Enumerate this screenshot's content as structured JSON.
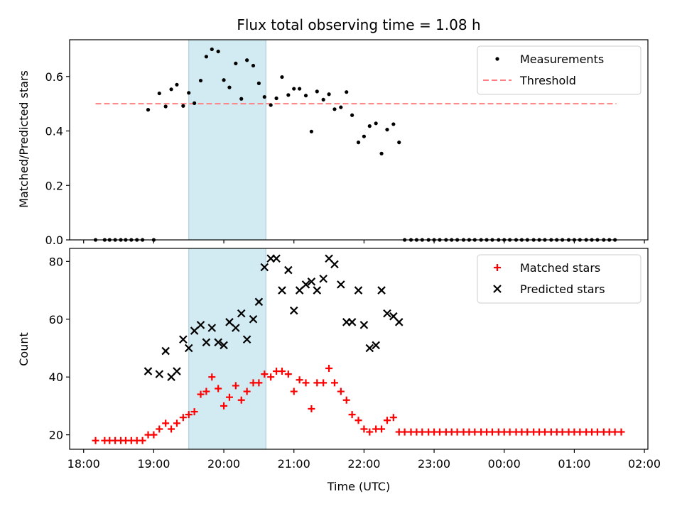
{
  "chart_data": [
    {
      "type": "scatter",
      "title": "Flux total observing time = 1.08 h",
      "xlabel": "",
      "ylabel": "Matched/Predicted stars",
      "ylim": [
        0,
        0.735
      ],
      "xlim": [
        -0.2,
        8.05
      ],
      "x_unit": "hours since 18:00 UTC",
      "y_ticks": [
        "0.0",
        "0.2",
        "0.4",
        "0.6"
      ],
      "y_tick_values": [
        0,
        0.2,
        0.4,
        0.6
      ],
      "highlight_span": [
        1.5,
        2.6
      ],
      "highlight_color": "#add8e6",
      "legend": {
        "placement": "top-right",
        "entries": [
          "Measurements",
          "Threshold"
        ]
      },
      "threshold": {
        "name": "Threshold",
        "value": 0.5,
        "x_range": [
          0.17,
          7.6
        ],
        "color": "#ff8080",
        "style": "dashed"
      },
      "series": [
        {
          "name": "Measurements",
          "color": "#000000",
          "marker": "dot",
          "points": [
            [
              0.17,
              0.0
            ],
            [
              0.3,
              0.0
            ],
            [
              0.37,
              0.0
            ],
            [
              0.45,
              0.0
            ],
            [
              0.53,
              0.0
            ],
            [
              0.6,
              0.0
            ],
            [
              0.68,
              0.0
            ],
            [
              0.76,
              0.0
            ],
            [
              0.84,
              0.0
            ],
            [
              0.92,
              0.478
            ],
            [
              1.0,
              0.0
            ],
            [
              1.08,
              0.538
            ],
            [
              1.17,
              0.49
            ],
            [
              1.25,
              0.553
            ],
            [
              1.33,
              0.57
            ],
            [
              1.42,
              0.492
            ],
            [
              1.5,
              0.54
            ],
            [
              1.58,
              0.502
            ],
            [
              1.67,
              0.585
            ],
            [
              1.75,
              0.673
            ],
            [
              1.83,
              0.7
            ],
            [
              1.92,
              0.692
            ],
            [
              2.0,
              0.587
            ],
            [
              2.08,
              0.56
            ],
            [
              2.17,
              0.648
            ],
            [
              2.25,
              0.518
            ],
            [
              2.33,
              0.66
            ],
            [
              2.42,
              0.64
            ],
            [
              2.5,
              0.575
            ],
            [
              2.58,
              0.525
            ],
            [
              2.67,
              0.495
            ],
            [
              2.75,
              0.52
            ],
            [
              2.83,
              0.598
            ],
            [
              2.92,
              0.532
            ],
            [
              3.0,
              0.555
            ],
            [
              3.08,
              0.555
            ],
            [
              3.17,
              0.53
            ],
            [
              3.25,
              0.398
            ],
            [
              3.33,
              0.545
            ],
            [
              3.42,
              0.515
            ],
            [
              3.5,
              0.535
            ],
            [
              3.58,
              0.48
            ],
            [
              3.67,
              0.487
            ],
            [
              3.75,
              0.543
            ],
            [
              3.83,
              0.458
            ],
            [
              3.92,
              0.358
            ],
            [
              4.0,
              0.38
            ],
            [
              4.08,
              0.418
            ],
            [
              4.17,
              0.428
            ],
            [
              4.25,
              0.317
            ],
            [
              4.33,
              0.405
            ],
            [
              4.42,
              0.425
            ],
            [
              4.5,
              0.358
            ],
            [
              4.58,
              0.0
            ],
            [
              4.67,
              0.0
            ],
            [
              4.75,
              0.0
            ],
            [
              4.83,
              0.0
            ],
            [
              4.92,
              0.0
            ],
            [
              5.0,
              0.0
            ],
            [
              5.08,
              0.0
            ],
            [
              5.17,
              0.0
            ],
            [
              5.25,
              0.0
            ],
            [
              5.33,
              0.0
            ],
            [
              5.42,
              0.0
            ],
            [
              5.5,
              0.0
            ],
            [
              5.58,
              0.0
            ],
            [
              5.67,
              0.0
            ],
            [
              5.75,
              0.0
            ],
            [
              5.83,
              0.0
            ],
            [
              5.92,
              0.0
            ],
            [
              6.0,
              0.0
            ],
            [
              6.08,
              0.0
            ],
            [
              6.17,
              0.0
            ],
            [
              6.25,
              0.0
            ],
            [
              6.33,
              0.0
            ],
            [
              6.42,
              0.0
            ],
            [
              6.5,
              0.0
            ],
            [
              6.58,
              0.0
            ],
            [
              6.67,
              0.0
            ],
            [
              6.75,
              0.0
            ],
            [
              6.83,
              0.0
            ],
            [
              6.92,
              0.0
            ],
            [
              7.0,
              0.0
            ],
            [
              7.08,
              0.0
            ],
            [
              7.17,
              0.0
            ],
            [
              7.25,
              0.0
            ],
            [
              7.33,
              0.0
            ],
            [
              7.42,
              0.0
            ],
            [
              7.5,
              0.0
            ],
            [
              7.58,
              0.0
            ]
          ]
        }
      ]
    },
    {
      "type": "scatter",
      "title": "",
      "xlabel": "Time (UTC)",
      "ylabel": "Count",
      "ylim": [
        15,
        84.5
      ],
      "xlim": [
        -0.2,
        8.05
      ],
      "x_unit": "hours since 18:00 UTC",
      "y_ticks": [
        "20",
        "40",
        "60",
        "80"
      ],
      "y_tick_values": [
        20,
        40,
        60,
        80
      ],
      "x_ticks": [
        "18:00",
        "19:00",
        "20:00",
        "21:00",
        "22:00",
        "23:00",
        "00:00",
        "01:00",
        "02:00"
      ],
      "x_tick_values": [
        0,
        1,
        2,
        3,
        4,
        5,
        6,
        7,
        8
      ],
      "highlight_span": [
        1.5,
        2.6
      ],
      "highlight_color": "#add8e6",
      "legend": {
        "placement": "top-right",
        "entries": [
          "Matched stars",
          "Predicted stars"
        ]
      },
      "series": [
        {
          "name": "Matched stars",
          "color": "#ff0000",
          "marker": "plus",
          "points": [
            [
              0.17,
              18
            ],
            [
              0.3,
              18
            ],
            [
              0.37,
              18
            ],
            [
              0.45,
              18
            ],
            [
              0.53,
              18
            ],
            [
              0.6,
              18
            ],
            [
              0.68,
              18
            ],
            [
              0.76,
              18
            ],
            [
              0.84,
              18
            ],
            [
              0.92,
              20
            ],
            [
              1.0,
              20
            ],
            [
              1.08,
              22
            ],
            [
              1.17,
              24
            ],
            [
              1.25,
              22
            ],
            [
              1.33,
              24
            ],
            [
              1.42,
              26
            ],
            [
              1.5,
              27
            ],
            [
              1.58,
              28
            ],
            [
              1.67,
              34
            ],
            [
              1.75,
              35
            ],
            [
              1.83,
              40
            ],
            [
              1.92,
              36
            ],
            [
              2.0,
              30
            ],
            [
              2.08,
              33
            ],
            [
              2.17,
              37
            ],
            [
              2.25,
              32
            ],
            [
              2.33,
              35
            ],
            [
              2.42,
              38
            ],
            [
              2.5,
              38
            ],
            [
              2.58,
              41
            ],
            [
              2.67,
              40
            ],
            [
              2.75,
              42
            ],
            [
              2.83,
              42
            ],
            [
              2.92,
              41
            ],
            [
              3.0,
              35
            ],
            [
              3.08,
              39
            ],
            [
              3.17,
              38
            ],
            [
              3.25,
              29
            ],
            [
              3.33,
              38
            ],
            [
              3.42,
              38
            ],
            [
              3.5,
              43
            ],
            [
              3.58,
              38
            ],
            [
              3.67,
              35
            ],
            [
              3.75,
              32
            ],
            [
              3.83,
              27
            ],
            [
              3.92,
              25
            ],
            [
              4.0,
              22
            ],
            [
              4.08,
              21
            ],
            [
              4.17,
              22
            ],
            [
              4.25,
              22
            ],
            [
              4.33,
              25
            ],
            [
              4.42,
              26
            ],
            [
              4.5,
              21
            ],
            [
              4.58,
              21
            ],
            [
              4.67,
              21
            ],
            [
              4.75,
              21
            ],
            [
              4.83,
              21
            ],
            [
              4.92,
              21
            ],
            [
              5.0,
              21
            ],
            [
              5.08,
              21
            ],
            [
              5.17,
              21
            ],
            [
              5.25,
              21
            ],
            [
              5.33,
              21
            ],
            [
              5.42,
              21
            ],
            [
              5.5,
              21
            ],
            [
              5.58,
              21
            ],
            [
              5.67,
              21
            ],
            [
              5.75,
              21
            ],
            [
              5.83,
              21
            ],
            [
              5.92,
              21
            ],
            [
              6.0,
              21
            ],
            [
              6.08,
              21
            ],
            [
              6.17,
              21
            ],
            [
              6.25,
              21
            ],
            [
              6.33,
              21
            ],
            [
              6.42,
              21
            ],
            [
              6.5,
              21
            ],
            [
              6.58,
              21
            ],
            [
              6.67,
              21
            ],
            [
              6.75,
              21
            ],
            [
              6.83,
              21
            ],
            [
              6.92,
              21
            ],
            [
              7.0,
              21
            ],
            [
              7.08,
              21
            ],
            [
              7.17,
              21
            ],
            [
              7.25,
              21
            ],
            [
              7.33,
              21
            ],
            [
              7.42,
              21
            ],
            [
              7.5,
              21
            ],
            [
              7.58,
              21
            ],
            [
              7.67,
              21
            ]
          ]
        },
        {
          "name": "Predicted stars",
          "color": "#000000",
          "marker": "x",
          "points": [
            [
              0.92,
              42
            ],
            [
              1.08,
              41
            ],
            [
              1.17,
              49
            ],
            [
              1.25,
              40
            ],
            [
              1.33,
              42
            ],
            [
              1.42,
              53
            ],
            [
              1.5,
              50
            ],
            [
              1.58,
              56
            ],
            [
              1.67,
              58
            ],
            [
              1.75,
              52
            ],
            [
              1.83,
              57
            ],
            [
              1.92,
              52
            ],
            [
              2.0,
              51
            ],
            [
              2.08,
              59
            ],
            [
              2.17,
              57
            ],
            [
              2.25,
              62
            ],
            [
              2.33,
              53
            ],
            [
              2.42,
              60
            ],
            [
              2.5,
              66
            ],
            [
              2.58,
              78
            ],
            [
              2.67,
              81
            ],
            [
              2.75,
              81
            ],
            [
              2.83,
              70
            ],
            [
              2.92,
              77
            ],
            [
              3.0,
              63
            ],
            [
              3.08,
              70
            ],
            [
              3.17,
              72
            ],
            [
              3.25,
              73
            ],
            [
              3.33,
              70
            ],
            [
              3.42,
              74
            ],
            [
              3.5,
              81
            ],
            [
              3.58,
              79
            ],
            [
              3.67,
              72
            ],
            [
              3.75,
              59
            ],
            [
              3.83,
              59
            ],
            [
              3.92,
              70
            ],
            [
              4.0,
              58
            ],
            [
              4.08,
              50
            ],
            [
              4.17,
              51
            ],
            [
              4.25,
              70
            ],
            [
              4.33,
              62
            ],
            [
              4.42,
              61
            ],
            [
              4.5,
              59
            ]
          ]
        }
      ]
    }
  ]
}
